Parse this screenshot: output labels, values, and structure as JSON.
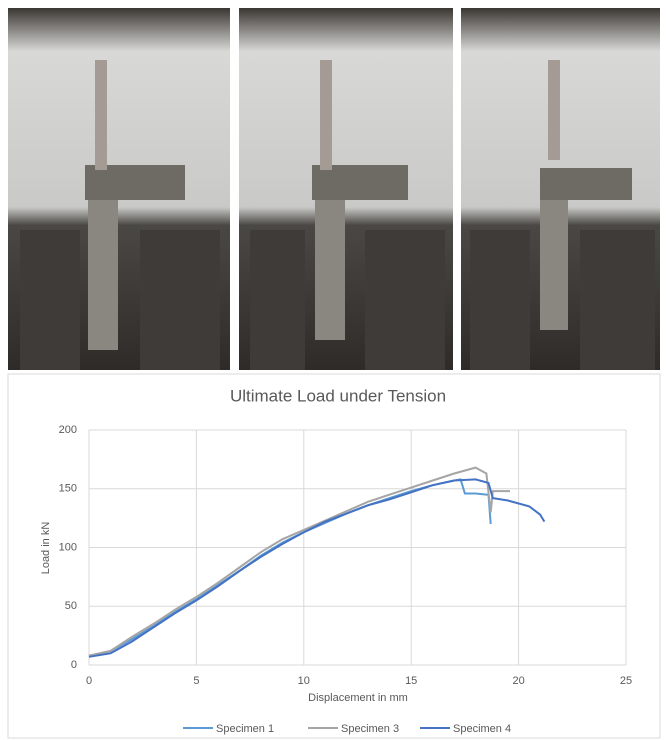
{
  "chart_data": {
    "type": "line",
    "title": "Ultimate Load under Tension",
    "x_label": "Displacement in mm",
    "y_label": "Load in kN",
    "xlim": [
      0,
      25
    ],
    "xticks": [
      0,
      5,
      10,
      15,
      20,
      25
    ],
    "ylim": [
      0,
      200
    ],
    "yticks": [
      0,
      50,
      100,
      150,
      200
    ],
    "grid": true,
    "legend": "bottom",
    "series": [
      {
        "name": "Specimen 1",
        "color": "#5b9bd5",
        "x": [
          0,
          0.5,
          1,
          2,
          3,
          4,
          5,
          6,
          7,
          8,
          9,
          10,
          11,
          12,
          13,
          14,
          15,
          16,
          17,
          17.3,
          17.5,
          18,
          18.5,
          18.6,
          18.7
        ],
        "values": [
          8,
          9,
          12,
          22,
          33,
          45,
          56,
          68,
          80,
          93,
          104,
          113,
          121,
          129,
          136,
          142,
          148,
          153,
          157,
          158,
          146,
          146,
          145,
          145,
          120
        ]
      },
      {
        "name": "Specimen 3",
        "color": "#a5a5a5",
        "x": [
          0,
          1,
          2,
          3,
          4,
          5,
          6,
          7,
          8,
          9,
          10,
          11,
          12,
          13,
          14,
          15,
          16,
          17,
          18,
          18.5,
          18.7,
          18.8,
          19.6
        ],
        "values": [
          8,
          12,
          24,
          35,
          47,
          58,
          70,
          83,
          96,
          107,
          115,
          123,
          131,
          139,
          145,
          151,
          157,
          163,
          168,
          163,
          130,
          148,
          148
        ]
      },
      {
        "name": "Specimen 4",
        "color": "#4472c4",
        "x": [
          0,
          1,
          2,
          3,
          4,
          5,
          6,
          7,
          8,
          9,
          10,
          11,
          12,
          13,
          14,
          15,
          16,
          17,
          18,
          18.6,
          18.8,
          19.5,
          20.5,
          21,
          21.2
        ],
        "values": [
          7,
          10,
          20,
          32,
          44,
          55,
          67,
          80,
          92,
          103,
          113,
          122,
          129,
          136,
          141,
          147,
          153,
          157,
          158,
          155,
          142,
          140,
          135,
          128,
          122
        ]
      }
    ]
  }
}
